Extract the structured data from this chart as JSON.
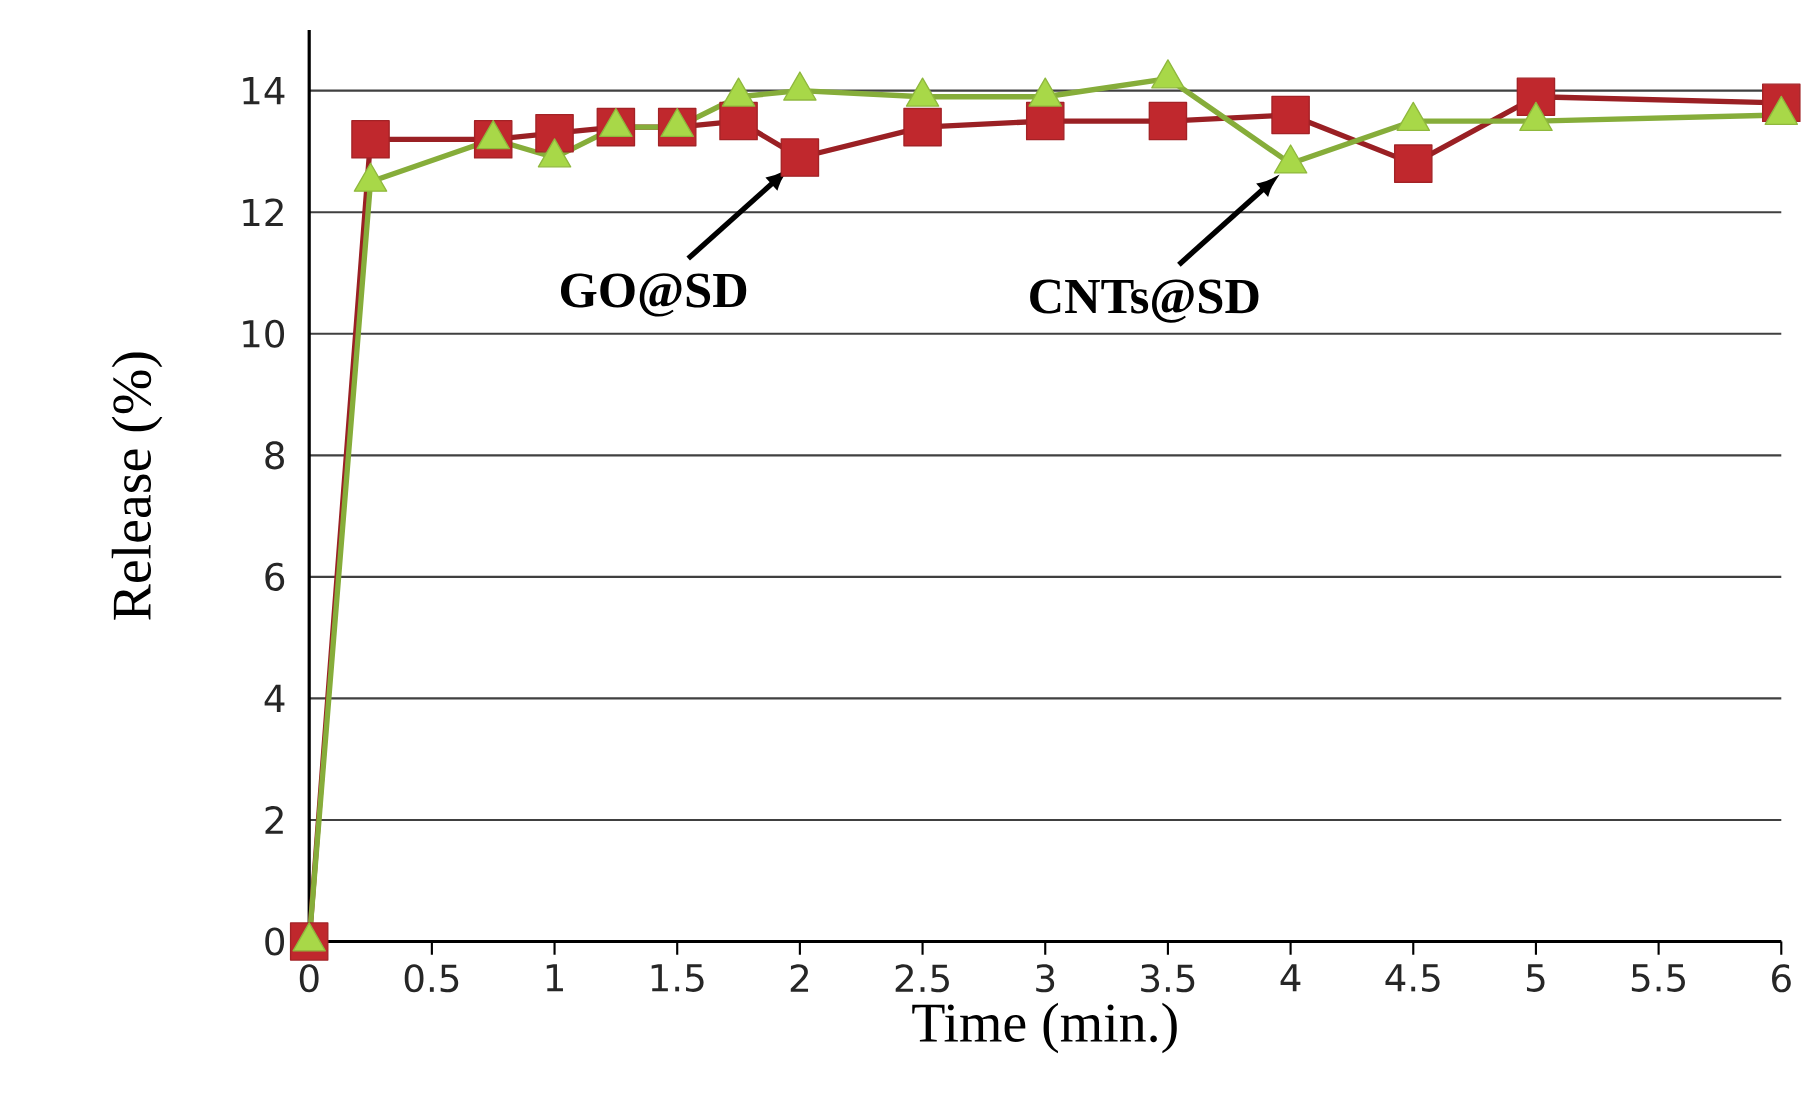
{
  "chart_data": {
    "type": "line",
    "xlabel": "Time (min.)",
    "ylabel": "Release (%)",
    "xlim": [
      0,
      6
    ],
    "ylim": [
      0,
      15
    ],
    "xticks": [
      0,
      0.5,
      1,
      1.5,
      2,
      2.5,
      3,
      3.5,
      4,
      4.5,
      5,
      5.5,
      6
    ],
    "yticks": [
      0,
      2,
      4,
      6,
      8,
      10,
      12,
      14
    ],
    "grid": "y",
    "line_style": "solid",
    "series": [
      {
        "color": "#c0282d",
        "marker": "square",
        "x": [
          0,
          0.25,
          0.75,
          1,
          1.25,
          1.5,
          1.75,
          2,
          2.5,
          3,
          3.5,
          4,
          4.5,
          5,
          6
        ],
        "values": [
          0,
          13.2,
          13.2,
          13.3,
          13.4,
          13.4,
          13.5,
          12.9,
          13.4,
          13.5,
          13.5,
          13.6,
          12.8,
          13.9,
          13.8
        ]
      },
      {
        "color": "#a8d848",
        "marker": "triangle",
        "x": [
          0,
          0.25,
          0.75,
          1,
          1.25,
          1.5,
          1.75,
          2,
          2.5,
          3,
          3.5,
          4,
          4.5,
          5,
          6
        ],
        "values": [
          0,
          12.5,
          13.2,
          12.9,
          13.4,
          13.4,
          13.9,
          14.0,
          13.9,
          13.9,
          14.2,
          12.8,
          13.5,
          13.5,
          13.6
        ]
      }
    ],
    "annotations": [
      {
        "text": "GO@SD",
        "x": 2,
        "y": 12.9
      },
      {
        "text": "CNTs@SD",
        "x": 4,
        "y": 12.8
      }
    ]
  }
}
